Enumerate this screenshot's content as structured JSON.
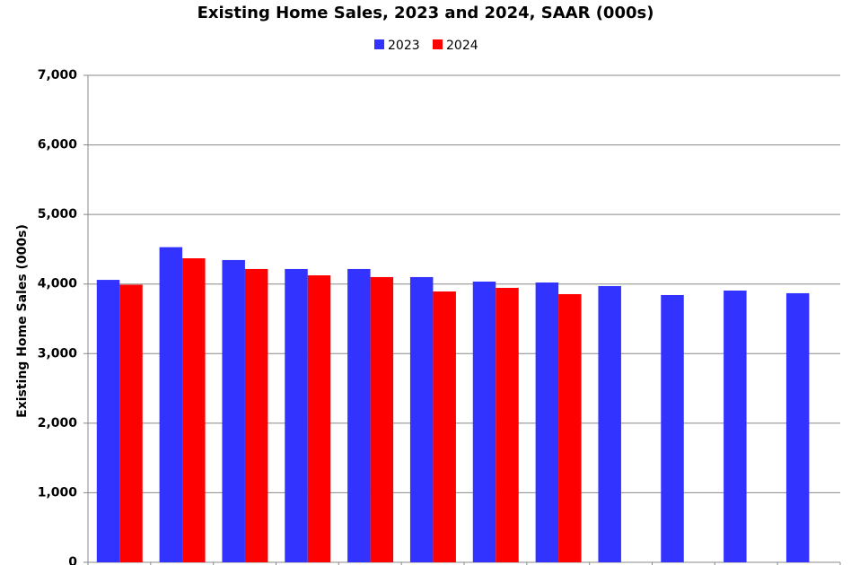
{
  "chart_data": {
    "type": "bar",
    "title": "Existing Home Sales,  2023 and 2024, SAAR (000s)",
    "y_label": "Existing Home Sales (000s)",
    "categories": [
      null,
      null,
      null,
      null,
      null,
      null,
      null,
      null,
      null,
      null,
      null,
      null
    ],
    "series": [
      {
        "name": "2023",
        "color": "#3333ff",
        "values": [
          4060,
          4530,
          4345,
          4216,
          4216,
          4100,
          4035,
          4022,
          3971,
          3842,
          3906,
          3868
        ]
      },
      {
        "name": "2024",
        "color": "#ff0000",
        "values": [
          3990,
          4370,
          4216,
          4125,
          4100,
          3893,
          3945,
          3855,
          null,
          null,
          null,
          null
        ]
      }
    ],
    "ylim": [
      0,
      7000
    ],
    "yticks": [
      {
        "value": 0,
        "label": "0"
      },
      {
        "value": 1000,
        "label": "1,000"
      },
      {
        "value": 2000,
        "label": "2,000"
      },
      {
        "value": 3000,
        "label": "3,000"
      },
      {
        "value": 4000,
        "label": "4,000"
      },
      {
        "value": 5000,
        "label": "5,000"
      },
      {
        "value": 6000,
        "label": "6,000"
      },
      {
        "value": 7000,
        "label": "7,000"
      }
    ],
    "grid": true,
    "legend": "top"
  }
}
